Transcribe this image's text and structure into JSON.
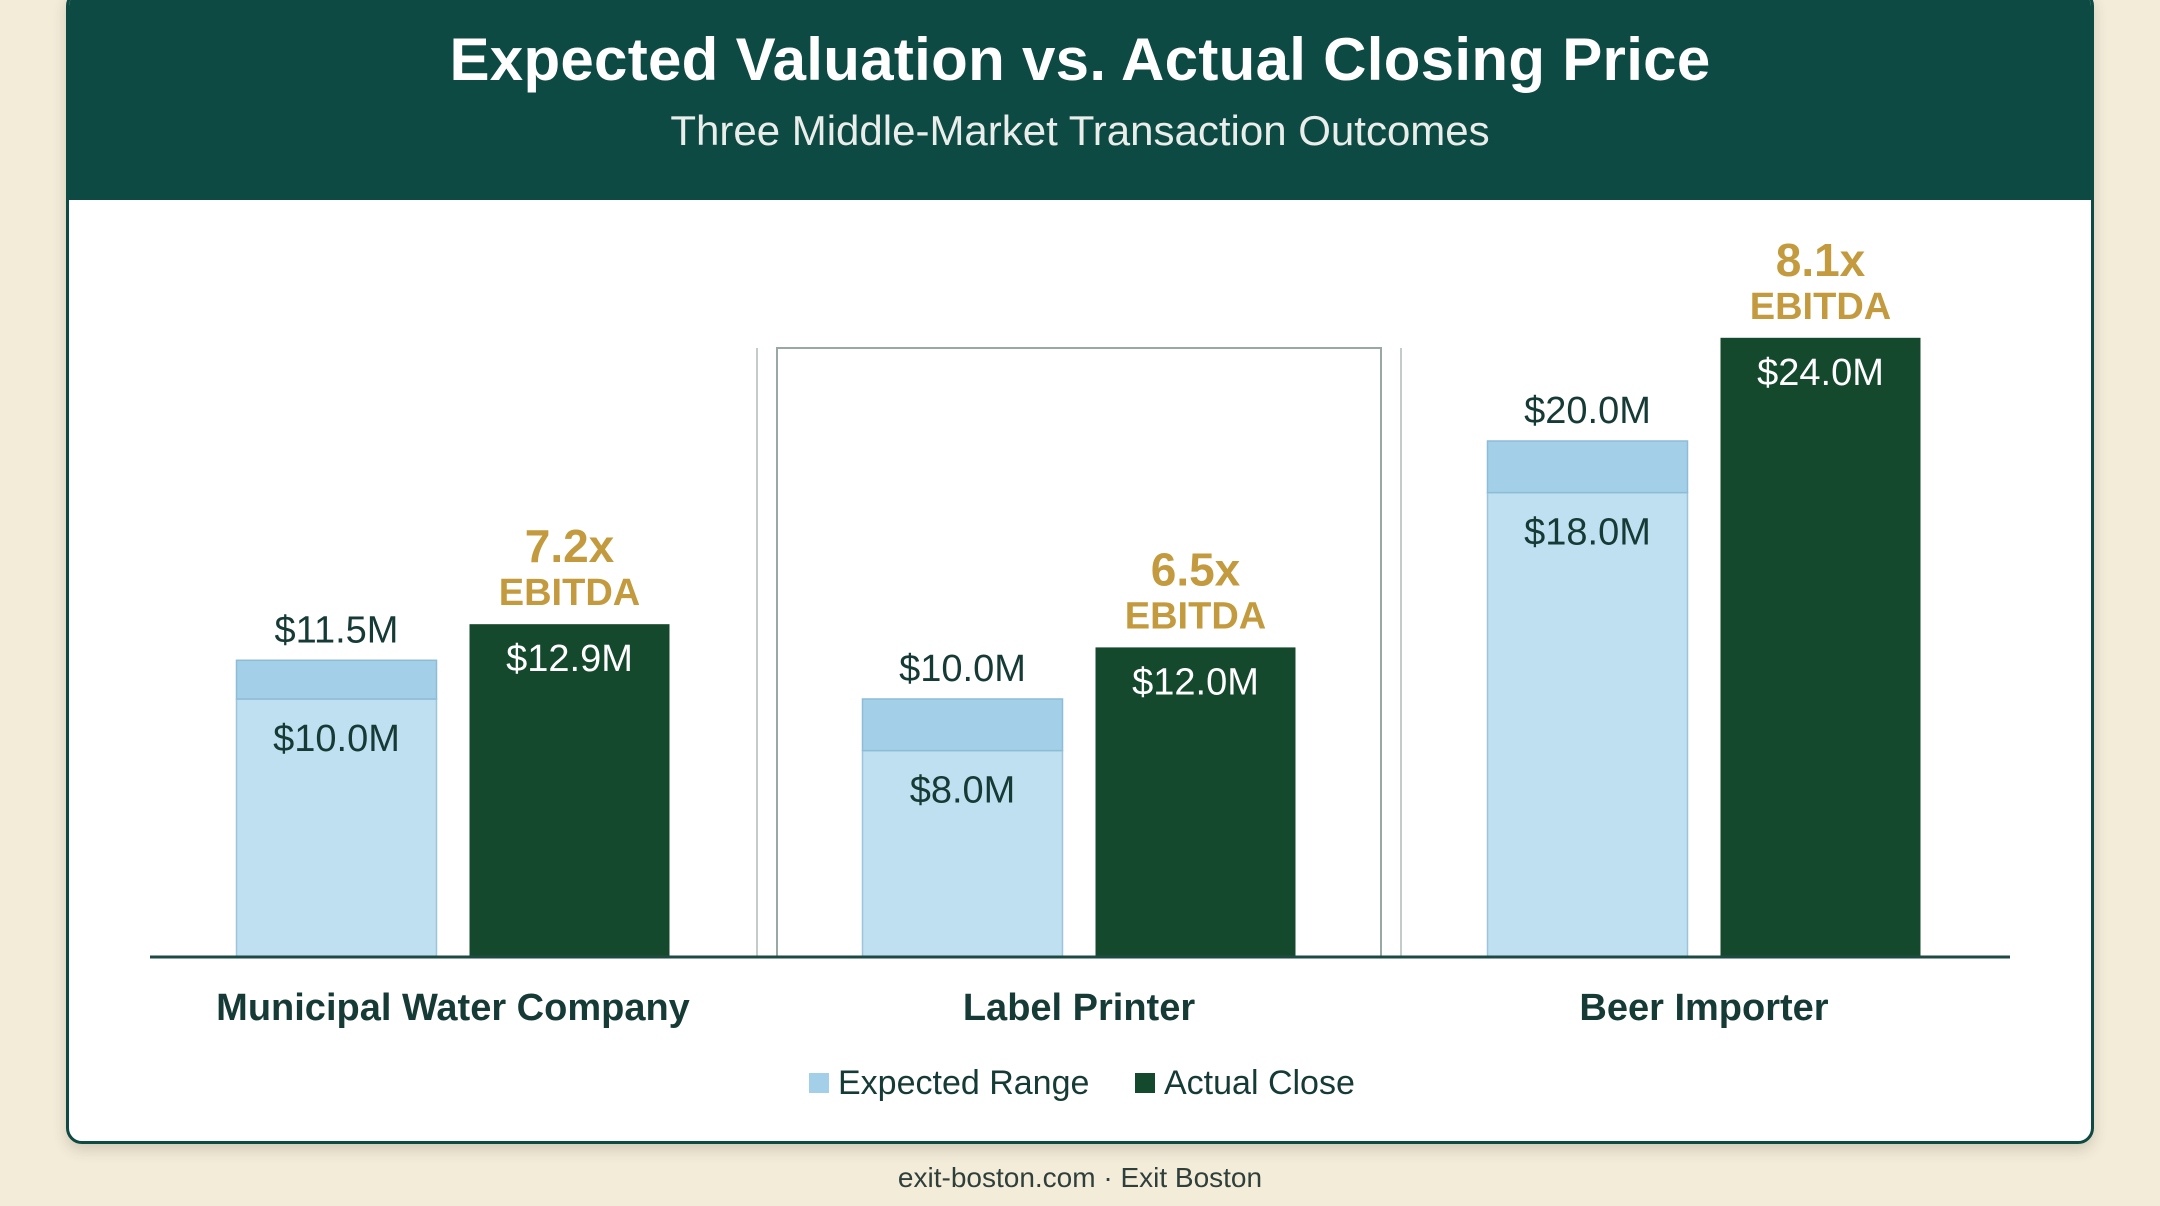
{
  "title": "Expected Valuation vs. Actual Closing Price",
  "subtitle": "Three Middle-Market Transaction Outcomes",
  "footer": "exit-boston.com · Exit Boston",
  "colors": {
    "header": "#0e4a44",
    "expected_fill": "#bfe0f0",
    "expected_top": "#a3d0e8",
    "actual_fill": "#15492d",
    "multiple_text": "#c39a3e",
    "text_dark": "#163a35"
  },
  "chart_data": {
    "type": "bar",
    "categories": [
      "Municipal Water Company",
      "Label Printer",
      "Beer Importer"
    ],
    "series": [
      {
        "name": "Expected Range",
        "low": [
          10.0,
          8.0,
          18.0
        ],
        "high": [
          11.5,
          10.0,
          20.0
        ],
        "low_labels": [
          "$10.0M",
          "$8.0M",
          "$18.0M"
        ],
        "high_labels": [
          "$11.5M",
          "$10.0M",
          "$20.0M"
        ]
      },
      {
        "name": "Actual Close",
        "values": [
          12.9,
          12.0,
          24.0
        ],
        "value_labels": [
          "$12.9M",
          "$12.0M",
          "$24.0M"
        ],
        "multiple_values": [
          "7.2x",
          "6.5x",
          "8.1x"
        ],
        "multiple_unit": "EBITDA"
      }
    ],
    "ylim": [
      0,
      26
    ],
    "highlighted_category": "Label Printer",
    "legend_position": "bottom-center",
    "grid": false
  }
}
